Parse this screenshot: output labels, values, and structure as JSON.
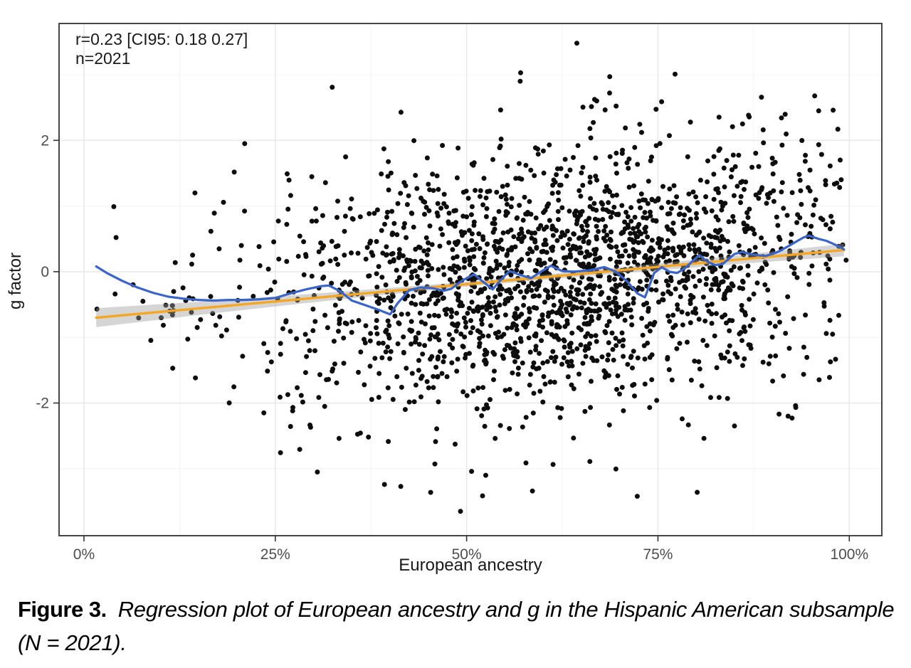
{
  "figure": {
    "caption_label": "Figure 3.",
    "caption_text": "Regression plot of European ancestry and g in the Hispanic American subsample (N = 2021)."
  },
  "chart_data": {
    "type": "scatter",
    "annotation_line1": "r=0.23 [CI95: 0.18 0.27]",
    "annotation_line2": "n=2021",
    "xlabel": "European ancestry",
    "ylabel": "g factor",
    "x_range": [
      -3.25,
      104.25
    ],
    "y_range": [
      -4.02,
      3.78
    ],
    "x_ticks": [
      {
        "value": 0,
        "label": "0%"
      },
      {
        "value": 25,
        "label": "25%"
      },
      {
        "value": 50,
        "label": "50%"
      },
      {
        "value": 75,
        "label": "75%"
      },
      {
        "value": 100,
        "label": "100%"
      }
    ],
    "y_ticks": [
      {
        "value": -2,
        "label": "-2"
      },
      {
        "value": 0,
        "label": "0"
      },
      {
        "value": 2,
        "label": "2"
      }
    ],
    "x_minor": [
      12.5,
      37.5,
      62.5,
      87.5
    ],
    "y_minor": [
      -3,
      -1,
      1,
      3
    ],
    "grid": true,
    "legend": "none",
    "regression_line": {
      "x": [
        1.6,
        99.3
      ],
      "y": [
        -0.7,
        0.33
      ],
      "color": "#F5A623"
    },
    "confidence_band": {
      "anchors_x": [
        1.6,
        15,
        30,
        50,
        70,
        85,
        99.3
      ],
      "half_width": [
        0.145,
        0.1,
        0.065,
        0.035,
        0.045,
        0.065,
        0.095
      ],
      "color": "#9a9a9a",
      "opacity": 0.42
    },
    "loess_line": {
      "color": "#3A64C8",
      "points": [
        [
          1.6,
          0.08
        ],
        [
          3,
          -0.02
        ],
        [
          5,
          -0.14
        ],
        [
          7,
          -0.24
        ],
        [
          9,
          -0.32
        ],
        [
          11,
          -0.38
        ],
        [
          13,
          -0.41
        ],
        [
          15,
          -0.43
        ],
        [
          17,
          -0.44
        ],
        [
          19,
          -0.43
        ],
        [
          21,
          -0.43
        ],
        [
          23,
          -0.42
        ],
        [
          25,
          -0.4
        ],
        [
          27,
          -0.33
        ],
        [
          29,
          -0.27
        ],
        [
          31,
          -0.22
        ],
        [
          32,
          -0.21
        ],
        [
          33.5,
          -0.3
        ],
        [
          35,
          -0.44
        ],
        [
          37,
          -0.52
        ],
        [
          38.5,
          -0.58
        ],
        [
          40,
          -0.65
        ],
        [
          41,
          -0.48
        ],
        [
          42.5,
          -0.28
        ],
        [
          44,
          -0.24
        ],
        [
          45.5,
          -0.25
        ],
        [
          47,
          -0.29
        ],
        [
          48,
          -0.26
        ],
        [
          49.5,
          -0.13
        ],
        [
          51,
          -0.04
        ],
        [
          52,
          -0.14
        ],
        [
          53.4,
          -0.27
        ],
        [
          54.5,
          -0.12
        ],
        [
          55.6,
          0.01
        ],
        [
          57,
          -0.05
        ],
        [
          58.4,
          -0.1
        ],
        [
          59.7,
          0.0
        ],
        [
          61,
          0.09
        ],
        [
          62.5,
          0.01
        ],
        [
          64,
          0.0
        ],
        [
          66,
          0.02
        ],
        [
          68,
          0.07
        ],
        [
          69.5,
          0.0
        ],
        [
          71,
          -0.15
        ],
        [
          72.3,
          -0.33
        ],
        [
          73.3,
          -0.39
        ],
        [
          74.5,
          -0.02
        ],
        [
          75.5,
          0.07
        ],
        [
          76.5,
          0.0
        ],
        [
          77.5,
          -0.02
        ],
        [
          78.5,
          0.05
        ],
        [
          79.5,
          0.16
        ],
        [
          80.4,
          0.25
        ],
        [
          81.5,
          0.15
        ],
        [
          82.5,
          0.1
        ],
        [
          83.5,
          0.12
        ],
        [
          85,
          0.27
        ],
        [
          86,
          0.3
        ],
        [
          87,
          0.27
        ],
        [
          88,
          0.25
        ],
        [
          89,
          0.24
        ],
        [
          90,
          0.27
        ],
        [
          91,
          0.32
        ],
        [
          92.5,
          0.42
        ],
        [
          94,
          0.52
        ],
        [
          94.7,
          0.55
        ],
        [
          96,
          0.5
        ],
        [
          97,
          0.47
        ],
        [
          98,
          0.42
        ],
        [
          99.3,
          0.34
        ]
      ]
    },
    "scatter": {
      "n_total": 2021,
      "point_color": "#0d0d0d",
      "point_radius": 3.5,
      "generator": {
        "seed": 42,
        "x_mean": 63,
        "x_sd": 20.5,
        "x_min": 1.5,
        "x_max": 99.6,
        "intercept": -0.717,
        "slope": 0.01054,
        "resid_sd": 0.96,
        "y_abs_max": 3.68,
        "left_tail_limit_x": 15,
        "left_tail_max_resid": 1.1
      },
      "fixed_points": [
        [
          1.7,
          -0.57
        ],
        [
          3.9,
          0.99
        ],
        [
          4.2,
          0.52
        ],
        [
          7.7,
          -0.45
        ],
        [
          10.7,
          -0.51
        ],
        [
          11.2,
          -0.6
        ],
        [
          11.6,
          -1.47
        ],
        [
          13.3,
          -0.44
        ],
        [
          14.5,
          1.2
        ],
        [
          14.8,
          -0.85
        ],
        [
          64.4,
          3.48
        ],
        [
          68.7,
          2.97
        ],
        [
          57,
          2.9
        ],
        [
          49.2,
          -3.65
        ],
        [
          45.3,
          -3.36
        ],
        [
          41.4,
          -3.27
        ],
        [
          58.6,
          -3.34
        ],
        [
          72.3,
          -3.42
        ],
        [
          21,
          1.95
        ],
        [
          30.5,
          -3.05
        ],
        [
          52.5,
          -3.1
        ],
        [
          67,
          2.6
        ],
        [
          23.5,
          -2.15
        ],
        [
          96,
          2.45
        ],
        [
          92,
          -2.2
        ],
        [
          85,
          -2.35
        ],
        [
          98.5,
          2.17
        ],
        [
          97.5,
          1.61
        ]
      ]
    },
    "colors": {
      "panel_background": "#ffffff",
      "panel_border": "#333333",
      "grid_major": "#e9e9e9",
      "grid_minor": "#f4f4f4",
      "tick_mark": "#333333",
      "tick_label": "#4d4d4d",
      "axis_title": "#1a1a1a",
      "annotation": "#1a1a1a"
    }
  }
}
